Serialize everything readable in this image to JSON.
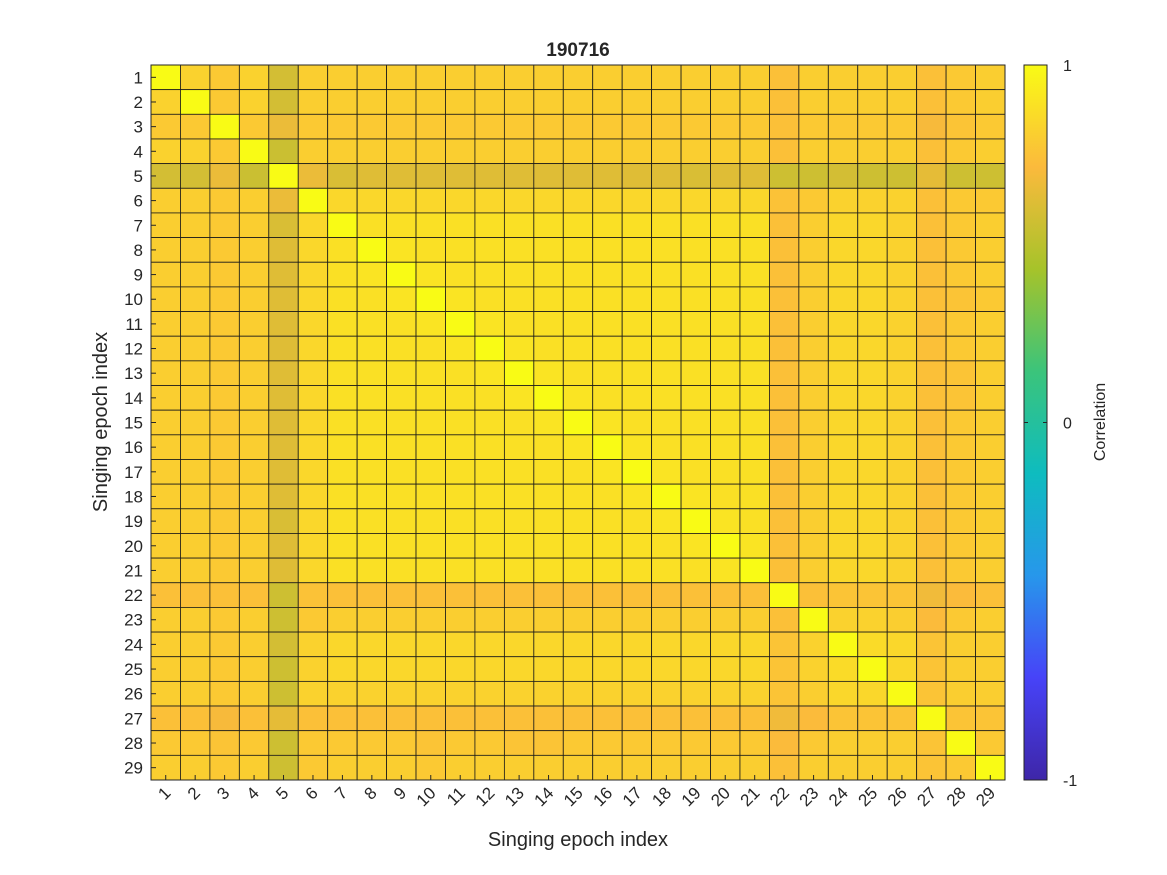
{
  "chart_data": {
    "type": "heatmap",
    "title": "190716",
    "xlabel": "Singing epoch index",
    "ylabel": "Singing epoch index",
    "categories": [
      "1",
      "2",
      "3",
      "4",
      "5",
      "6",
      "7",
      "8",
      "9",
      "10",
      "11",
      "12",
      "13",
      "14",
      "15",
      "16",
      "17",
      "18",
      "19",
      "20",
      "21",
      "22",
      "23",
      "24",
      "25",
      "26",
      "27",
      "28",
      "29"
    ],
    "colorbar": {
      "label": "Correlation",
      "range": [
        -1,
        1
      ],
      "ticks": [
        "1",
        "0",
        "-1"
      ],
      "tick_values": [
        1,
        0,
        -1
      ],
      "colormap": "parula",
      "stops": [
        "#3e26a8",
        "#4743f8",
        "#2797eb",
        "#0ebcbf",
        "#3bc47b",
        "#a6c32a",
        "#fbba3c",
        "#f9fb15"
      ]
    },
    "values": [
      [
        1.0,
        0.82,
        0.78,
        0.82,
        0.58,
        0.8,
        0.8,
        0.8,
        0.8,
        0.8,
        0.8,
        0.8,
        0.8,
        0.8,
        0.8,
        0.8,
        0.8,
        0.8,
        0.8,
        0.8,
        0.8,
        0.74,
        0.8,
        0.8,
        0.8,
        0.8,
        0.74,
        0.78,
        0.8
      ],
      [
        0.82,
        1.0,
        0.78,
        0.82,
        0.58,
        0.8,
        0.8,
        0.8,
        0.8,
        0.8,
        0.8,
        0.8,
        0.8,
        0.8,
        0.8,
        0.8,
        0.8,
        0.8,
        0.8,
        0.8,
        0.8,
        0.74,
        0.8,
        0.8,
        0.8,
        0.8,
        0.74,
        0.78,
        0.8
      ],
      [
        0.78,
        0.78,
        1.0,
        0.78,
        0.66,
        0.78,
        0.78,
        0.78,
        0.78,
        0.78,
        0.78,
        0.78,
        0.78,
        0.78,
        0.78,
        0.78,
        0.78,
        0.78,
        0.78,
        0.78,
        0.78,
        0.74,
        0.78,
        0.78,
        0.78,
        0.78,
        0.7,
        0.76,
        0.78
      ],
      [
        0.82,
        0.82,
        0.78,
        1.0,
        0.55,
        0.8,
        0.8,
        0.8,
        0.8,
        0.8,
        0.8,
        0.8,
        0.8,
        0.8,
        0.8,
        0.8,
        0.8,
        0.8,
        0.8,
        0.8,
        0.8,
        0.74,
        0.8,
        0.8,
        0.8,
        0.8,
        0.74,
        0.78,
        0.8
      ],
      [
        0.58,
        0.58,
        0.66,
        0.55,
        1.0,
        0.66,
        0.6,
        0.62,
        0.62,
        0.62,
        0.62,
        0.62,
        0.62,
        0.62,
        0.62,
        0.62,
        0.62,
        0.62,
        0.6,
        0.62,
        0.62,
        0.56,
        0.56,
        0.58,
        0.56,
        0.56,
        0.64,
        0.56,
        0.56
      ],
      [
        0.8,
        0.8,
        0.78,
        0.8,
        0.66,
        1.0,
        0.84,
        0.84,
        0.84,
        0.84,
        0.84,
        0.84,
        0.84,
        0.84,
        0.84,
        0.84,
        0.84,
        0.84,
        0.84,
        0.84,
        0.84,
        0.75,
        0.78,
        0.82,
        0.82,
        0.82,
        0.74,
        0.78,
        0.78
      ],
      [
        0.8,
        0.8,
        0.78,
        0.8,
        0.6,
        0.84,
        1.0,
        0.88,
        0.88,
        0.88,
        0.88,
        0.88,
        0.88,
        0.88,
        0.88,
        0.88,
        0.88,
        0.88,
        0.88,
        0.88,
        0.88,
        0.74,
        0.8,
        0.84,
        0.84,
        0.82,
        0.74,
        0.78,
        0.8
      ],
      [
        0.8,
        0.8,
        0.78,
        0.8,
        0.62,
        0.84,
        0.88,
        1.0,
        0.9,
        0.88,
        0.88,
        0.88,
        0.88,
        0.88,
        0.88,
        0.88,
        0.88,
        0.88,
        0.88,
        0.88,
        0.88,
        0.74,
        0.8,
        0.84,
        0.84,
        0.82,
        0.74,
        0.78,
        0.8
      ],
      [
        0.8,
        0.8,
        0.78,
        0.8,
        0.62,
        0.84,
        0.88,
        0.9,
        1.0,
        0.9,
        0.88,
        0.88,
        0.88,
        0.88,
        0.88,
        0.88,
        0.88,
        0.88,
        0.88,
        0.88,
        0.88,
        0.74,
        0.8,
        0.84,
        0.84,
        0.82,
        0.74,
        0.78,
        0.8
      ],
      [
        0.8,
        0.8,
        0.78,
        0.8,
        0.62,
        0.84,
        0.88,
        0.88,
        0.9,
        1.0,
        0.9,
        0.88,
        0.88,
        0.88,
        0.88,
        0.88,
        0.88,
        0.88,
        0.88,
        0.88,
        0.88,
        0.74,
        0.8,
        0.84,
        0.84,
        0.82,
        0.74,
        0.76,
        0.78
      ],
      [
        0.8,
        0.8,
        0.78,
        0.8,
        0.62,
        0.84,
        0.88,
        0.88,
        0.88,
        0.9,
        1.0,
        0.9,
        0.88,
        0.88,
        0.88,
        0.88,
        0.88,
        0.88,
        0.88,
        0.88,
        0.88,
        0.74,
        0.8,
        0.84,
        0.84,
        0.82,
        0.74,
        0.78,
        0.8
      ],
      [
        0.8,
        0.8,
        0.78,
        0.8,
        0.62,
        0.84,
        0.88,
        0.88,
        0.88,
        0.88,
        0.9,
        1.0,
        0.9,
        0.88,
        0.88,
        0.88,
        0.88,
        0.88,
        0.88,
        0.88,
        0.88,
        0.74,
        0.8,
        0.84,
        0.84,
        0.82,
        0.74,
        0.78,
        0.8
      ],
      [
        0.8,
        0.8,
        0.78,
        0.8,
        0.62,
        0.84,
        0.88,
        0.88,
        0.88,
        0.88,
        0.88,
        0.9,
        1.0,
        0.9,
        0.88,
        0.88,
        0.88,
        0.88,
        0.88,
        0.88,
        0.88,
        0.74,
        0.8,
        0.84,
        0.84,
        0.82,
        0.74,
        0.76,
        0.8
      ],
      [
        0.8,
        0.8,
        0.78,
        0.8,
        0.62,
        0.84,
        0.88,
        0.88,
        0.88,
        0.88,
        0.88,
        0.88,
        0.9,
        1.0,
        0.9,
        0.88,
        0.88,
        0.88,
        0.88,
        0.88,
        0.88,
        0.74,
        0.8,
        0.84,
        0.84,
        0.82,
        0.74,
        0.76,
        0.8
      ],
      [
        0.8,
        0.8,
        0.78,
        0.8,
        0.62,
        0.84,
        0.88,
        0.88,
        0.88,
        0.88,
        0.88,
        0.88,
        0.88,
        0.9,
        1.0,
        0.9,
        0.88,
        0.88,
        0.88,
        0.88,
        0.88,
        0.74,
        0.8,
        0.84,
        0.84,
        0.82,
        0.74,
        0.78,
        0.8
      ],
      [
        0.8,
        0.8,
        0.78,
        0.8,
        0.62,
        0.84,
        0.88,
        0.88,
        0.88,
        0.88,
        0.88,
        0.88,
        0.88,
        0.88,
        0.9,
        1.0,
        0.9,
        0.88,
        0.88,
        0.88,
        0.88,
        0.74,
        0.8,
        0.84,
        0.84,
        0.82,
        0.74,
        0.78,
        0.8
      ],
      [
        0.8,
        0.8,
        0.78,
        0.8,
        0.62,
        0.84,
        0.88,
        0.88,
        0.88,
        0.88,
        0.88,
        0.88,
        0.88,
        0.88,
        0.88,
        0.9,
        1.0,
        0.9,
        0.88,
        0.88,
        0.88,
        0.74,
        0.8,
        0.84,
        0.84,
        0.82,
        0.74,
        0.78,
        0.8
      ],
      [
        0.8,
        0.8,
        0.78,
        0.8,
        0.62,
        0.84,
        0.88,
        0.88,
        0.88,
        0.88,
        0.88,
        0.88,
        0.88,
        0.88,
        0.88,
        0.88,
        0.9,
        1.0,
        0.9,
        0.88,
        0.88,
        0.74,
        0.8,
        0.84,
        0.84,
        0.82,
        0.74,
        0.78,
        0.8
      ],
      [
        0.8,
        0.8,
        0.78,
        0.8,
        0.6,
        0.84,
        0.88,
        0.88,
        0.88,
        0.88,
        0.88,
        0.88,
        0.88,
        0.88,
        0.88,
        0.88,
        0.88,
        0.9,
        1.0,
        0.9,
        0.88,
        0.74,
        0.8,
        0.84,
        0.84,
        0.82,
        0.74,
        0.78,
        0.8
      ],
      [
        0.8,
        0.8,
        0.78,
        0.8,
        0.62,
        0.84,
        0.88,
        0.88,
        0.88,
        0.88,
        0.88,
        0.88,
        0.88,
        0.88,
        0.88,
        0.88,
        0.88,
        0.88,
        0.9,
        1.0,
        0.9,
        0.74,
        0.8,
        0.84,
        0.84,
        0.82,
        0.74,
        0.78,
        0.8
      ],
      [
        0.8,
        0.8,
        0.78,
        0.8,
        0.62,
        0.84,
        0.88,
        0.88,
        0.88,
        0.88,
        0.88,
        0.88,
        0.88,
        0.88,
        0.88,
        0.88,
        0.88,
        0.88,
        0.88,
        0.9,
        1.0,
        0.74,
        0.8,
        0.84,
        0.84,
        0.82,
        0.74,
        0.78,
        0.8
      ],
      [
        0.74,
        0.74,
        0.74,
        0.74,
        0.56,
        0.75,
        0.74,
        0.74,
        0.74,
        0.74,
        0.74,
        0.74,
        0.74,
        0.74,
        0.74,
        0.74,
        0.74,
        0.74,
        0.74,
        0.74,
        0.74,
        1.0,
        0.74,
        0.76,
        0.76,
        0.76,
        0.68,
        0.72,
        0.74
      ],
      [
        0.8,
        0.8,
        0.78,
        0.8,
        0.56,
        0.78,
        0.8,
        0.8,
        0.8,
        0.8,
        0.8,
        0.8,
        0.8,
        0.8,
        0.8,
        0.8,
        0.8,
        0.8,
        0.8,
        0.8,
        0.8,
        0.74,
        1.0,
        0.82,
        0.82,
        0.8,
        0.72,
        0.78,
        0.8
      ],
      [
        0.8,
        0.8,
        0.78,
        0.8,
        0.58,
        0.82,
        0.84,
        0.84,
        0.84,
        0.84,
        0.84,
        0.84,
        0.84,
        0.84,
        0.84,
        0.84,
        0.84,
        0.84,
        0.84,
        0.84,
        0.84,
        0.76,
        0.82,
        1.0,
        0.86,
        0.84,
        0.76,
        0.8,
        0.8
      ],
      [
        0.8,
        0.8,
        0.78,
        0.8,
        0.56,
        0.82,
        0.84,
        0.84,
        0.84,
        0.84,
        0.84,
        0.84,
        0.84,
        0.84,
        0.84,
        0.84,
        0.84,
        0.84,
        0.84,
        0.84,
        0.84,
        0.76,
        0.82,
        0.86,
        1.0,
        0.84,
        0.76,
        0.8,
        0.8
      ],
      [
        0.8,
        0.8,
        0.78,
        0.8,
        0.56,
        0.82,
        0.82,
        0.82,
        0.82,
        0.82,
        0.82,
        0.82,
        0.82,
        0.82,
        0.82,
        0.82,
        0.82,
        0.82,
        0.82,
        0.82,
        0.82,
        0.76,
        0.8,
        0.84,
        0.84,
        1.0,
        0.76,
        0.8,
        0.8
      ],
      [
        0.74,
        0.74,
        0.7,
        0.74,
        0.64,
        0.74,
        0.74,
        0.74,
        0.74,
        0.74,
        0.74,
        0.74,
        0.74,
        0.74,
        0.74,
        0.74,
        0.74,
        0.74,
        0.74,
        0.74,
        0.74,
        0.68,
        0.72,
        0.76,
        0.76,
        0.76,
        1.0,
        0.76,
        0.76
      ],
      [
        0.78,
        0.78,
        0.76,
        0.78,
        0.56,
        0.78,
        0.78,
        0.78,
        0.78,
        0.76,
        0.78,
        0.78,
        0.76,
        0.76,
        0.78,
        0.78,
        0.78,
        0.78,
        0.78,
        0.78,
        0.78,
        0.72,
        0.78,
        0.8,
        0.8,
        0.8,
        0.76,
        1.0,
        0.78
      ],
      [
        0.8,
        0.8,
        0.78,
        0.8,
        0.56,
        0.78,
        0.8,
        0.8,
        0.8,
        0.78,
        0.8,
        0.8,
        0.8,
        0.8,
        0.8,
        0.8,
        0.8,
        0.8,
        0.8,
        0.8,
        0.8,
        0.74,
        0.8,
        0.8,
        0.8,
        0.8,
        0.76,
        0.78,
        1.0
      ]
    ]
  }
}
